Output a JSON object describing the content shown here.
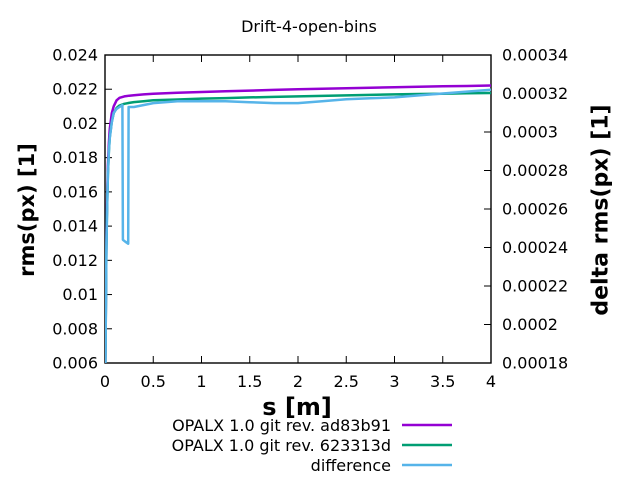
{
  "chart_data": {
    "type": "line",
    "title": "Drift-4-open-bins",
    "xlabel": "s [m]",
    "ylabel": "rms(px) [1]",
    "y2label": "delta rms(px) [1]",
    "xlim": [
      0,
      4
    ],
    "ylim": [
      0.006,
      0.024
    ],
    "y2lim": [
      0.00018,
      0.00034
    ],
    "grid": false,
    "legend_position": "below-right",
    "xticks": {
      "values": [
        0,
        0.5,
        1,
        1.5,
        2,
        2.5,
        3,
        3.5,
        4
      ],
      "labels": [
        "0",
        "0.5",
        "1",
        "1.5",
        "2",
        "2.5",
        "3",
        "3.5",
        "4"
      ]
    },
    "yticks": {
      "values": [
        0.024,
        0.022,
        0.02,
        0.018,
        0.016,
        0.014,
        0.012,
        0.01,
        0.008,
        0.006
      ],
      "labels": [
        "0.024",
        "0.022",
        "0.02",
        "0.018",
        "0.016",
        "0.014",
        "0.012",
        "0.01",
        "0.008",
        "0.006"
      ]
    },
    "y2ticks": {
      "values": [
        0.00034,
        0.00032,
        0.0003,
        0.00028,
        0.00026,
        0.00024,
        0.00022,
        0.0002,
        0.00018
      ],
      "labels": [
        "0.00034",
        "0.00032",
        "0.0003",
        "0.00028",
        "0.00026",
        "0.00024",
        "0.00022",
        "0.0002",
        "0.00018"
      ]
    },
    "series": [
      {
        "name": "OPALX 1.0 git rev. ad83b91",
        "color": "#9400d3",
        "axis": "y1",
        "x": [
          0.0,
          0.005,
          0.01,
          0.015,
          0.02,
          0.03,
          0.04,
          0.05,
          0.07,
          0.09,
          0.12,
          0.15,
          0.2,
          0.25,
          0.3,
          0.4,
          0.5,
          0.75,
          1.0,
          1.25,
          1.5,
          1.75,
          2.0,
          2.25,
          2.5,
          2.75,
          3.0,
          3.25,
          3.5,
          3.75,
          4.0
        ],
        "y": [
          0.004,
          0.0068,
          0.0105,
          0.0131,
          0.015,
          0.0175,
          0.0189,
          0.0197,
          0.0206,
          0.021,
          0.02135,
          0.0215,
          0.02158,
          0.02162,
          0.02165,
          0.0217,
          0.02173,
          0.02179,
          0.02184,
          0.02188,
          0.02192,
          0.02196,
          0.022,
          0.02203,
          0.02206,
          0.02209,
          0.02212,
          0.02214,
          0.02217,
          0.02219,
          0.02222
        ]
      },
      {
        "name": "OPALX 1.0 git rev. 623313d",
        "color": "#009e73",
        "axis": "y1",
        "x": [
          0.0,
          0.005,
          0.01,
          0.015,
          0.02,
          0.03,
          0.04,
          0.05,
          0.07,
          0.09,
          0.12,
          0.15,
          0.2,
          0.25,
          0.3,
          0.4,
          0.5,
          0.75,
          1.0,
          1.25,
          1.5,
          1.75,
          2.0,
          2.25,
          2.5,
          2.75,
          3.0,
          3.25,
          3.5,
          3.75,
          4.0
        ],
        "y": [
          0.004,
          0.0066,
          0.01,
          0.0126,
          0.0145,
          0.017,
          0.0184,
          0.0192,
          0.0201,
          0.0206,
          0.0209,
          0.02105,
          0.02115,
          0.0212,
          0.02125,
          0.0213,
          0.02135,
          0.0214,
          0.02145,
          0.02148,
          0.02152,
          0.02155,
          0.02158,
          0.02161,
          0.02164,
          0.02167,
          0.0217,
          0.02172,
          0.02174,
          0.02176,
          0.02178
        ]
      },
      {
        "name": "difference",
        "color": "#56b4e9",
        "axis": "y2",
        "x": [
          0.0,
          0.005,
          0.01,
          0.015,
          0.02,
          0.03,
          0.04,
          0.05,
          0.07,
          0.09,
          0.12,
          0.15,
          0.18,
          0.185,
          0.21,
          0.24,
          0.245,
          0.3,
          0.5,
          0.75,
          1.0,
          1.25,
          1.5,
          1.75,
          2.0,
          2.25,
          2.5,
          2.75,
          3.0,
          3.25,
          3.5,
          3.75,
          4.0
        ],
        "y": [
          0.00016,
          0.000185,
          0.000216,
          0.000239,
          0.000256,
          0.000278,
          0.00029,
          0.000297,
          0.000305,
          0.00031,
          0.000312,
          0.000313,
          0.000314,
          0.000244,
          0.000243,
          0.000242,
          0.000313,
          0.000313,
          0.000315,
          0.000316,
          0.000316,
          0.000316,
          0.0003155,
          0.000315,
          0.000315,
          0.000316,
          0.000317,
          0.0003175,
          0.000318,
          0.000319,
          0.00032,
          0.000321,
          0.000322
        ]
      }
    ]
  }
}
